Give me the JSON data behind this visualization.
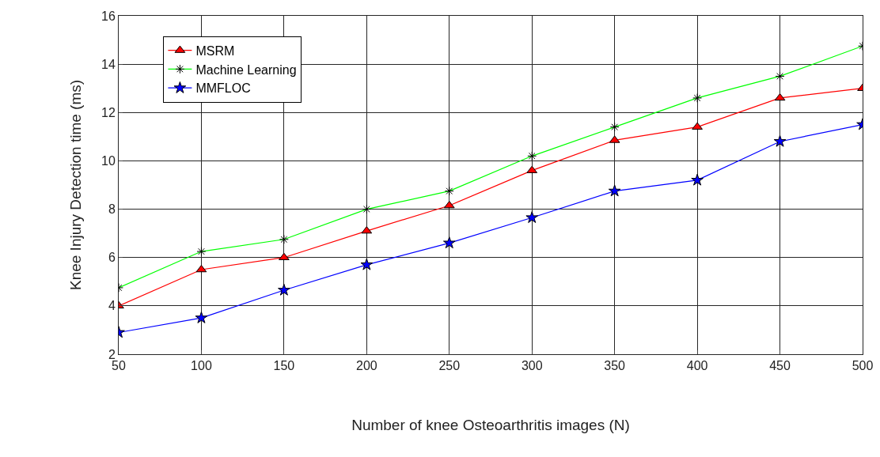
{
  "chart_data": {
    "type": "line",
    "xlabel": "Number of knee Osteoarthritis images (N)",
    "ylabel": "Knee Injury Detection time (ms)",
    "x": [
      50,
      100,
      150,
      200,
      250,
      300,
      350,
      400,
      450,
      500
    ],
    "series": [
      {
        "name": "MSRM",
        "color": "#ff0000",
        "marker": "triangle",
        "values": [
          4.0,
          5.5,
          6.0,
          7.1,
          8.15,
          9.6,
          10.85,
          11.4,
          12.6,
          13.0
        ]
      },
      {
        "name": "Machine Learning",
        "color": "#00ff00",
        "marker": "cross",
        "values": [
          4.75,
          6.25,
          6.75,
          8.0,
          8.75,
          10.2,
          11.4,
          12.6,
          13.5,
          14.75
        ]
      },
      {
        "name": "MMFLOC",
        "color": "#0000ff",
        "marker": "star",
        "values": [
          2.9,
          3.5,
          4.65,
          5.7,
          6.6,
          7.65,
          8.75,
          9.2,
          10.8,
          11.5
        ]
      }
    ],
    "xlim": [
      50,
      500
    ],
    "xticks": [
      50,
      100,
      150,
      200,
      250,
      300,
      350,
      400,
      450,
      500
    ],
    "ylim": [
      2,
      16
    ],
    "yticks": [
      2,
      4,
      6,
      8,
      10,
      12,
      14,
      16
    ],
    "grid": true,
    "legend": "top left",
    "line_style": "solid"
  }
}
